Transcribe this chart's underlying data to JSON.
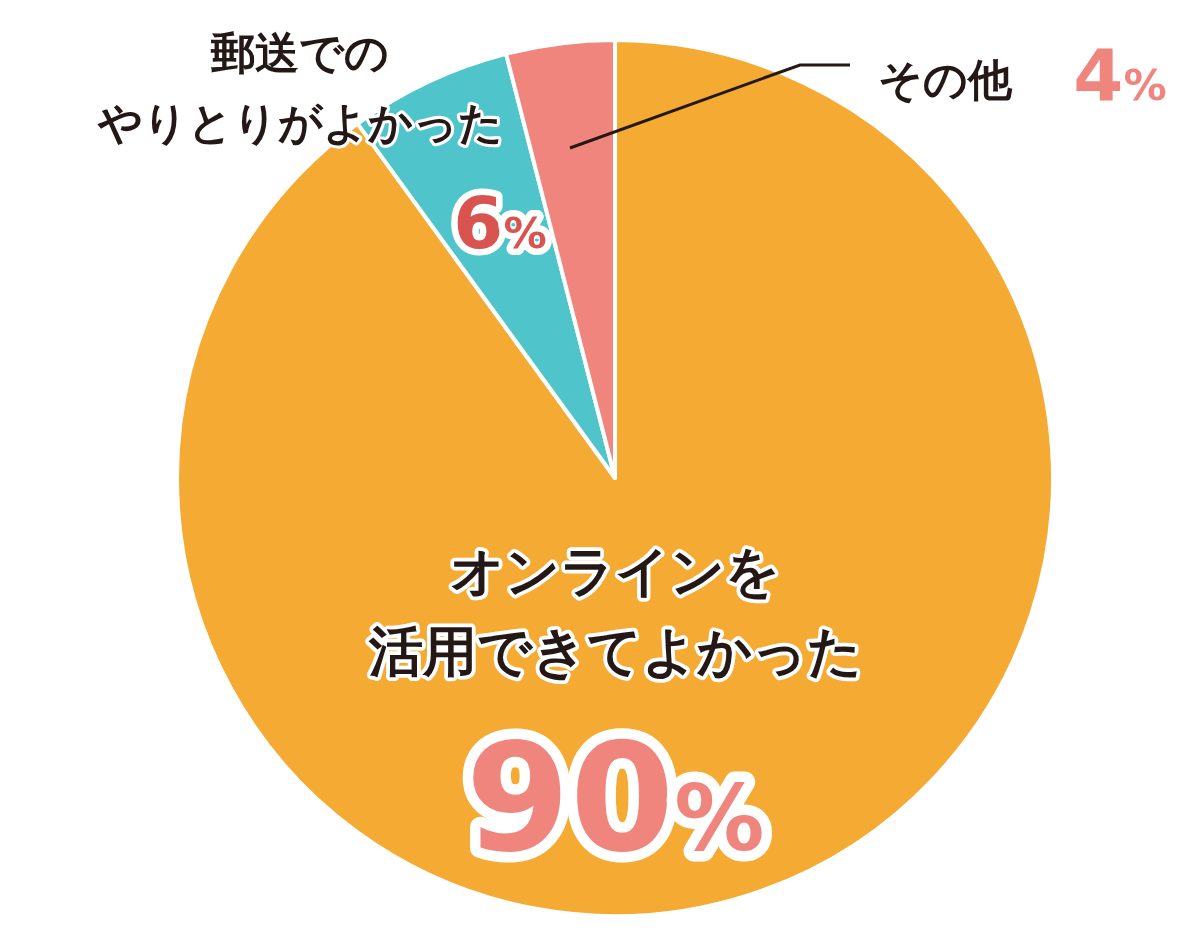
{
  "chart_data": {
    "type": "pie",
    "categories": [
      "オンラインを活用できてよかった",
      "郵送でのやりとりがよかった",
      "その他"
    ],
    "values": [
      90,
      6,
      4
    ],
    "colors": [
      "#f5ab33",
      "#4fc4ca",
      "#f0857e"
    ],
    "value_labels": [
      "90%",
      "6%",
      "4%"
    ]
  }
}
